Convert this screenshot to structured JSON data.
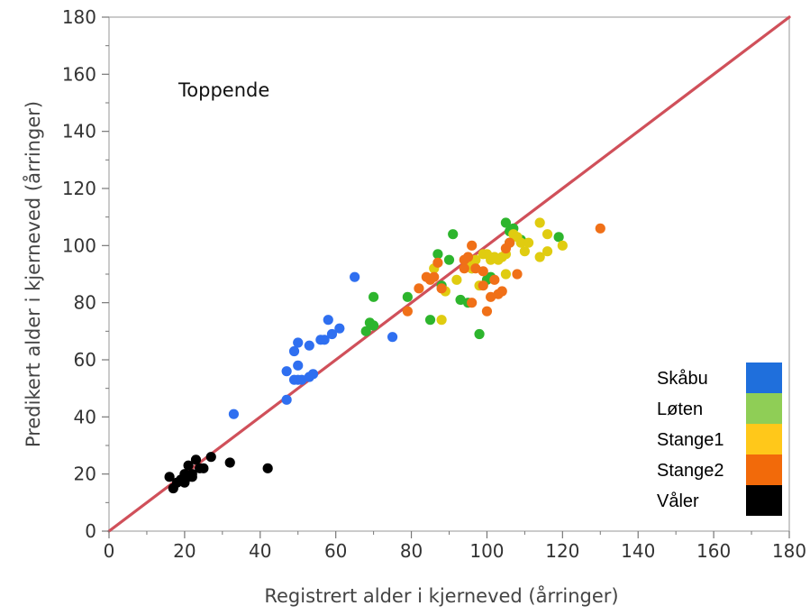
{
  "chart_data": {
    "type": "scatter",
    "title": "",
    "annotation": "Toppende",
    "xlabel": "Registrert alder i kjerneved (årringer)",
    "ylabel": "Predikert alder i kjerneved (årringer)",
    "xlim": [
      0,
      180
    ],
    "ylim": [
      0,
      180
    ],
    "xticks": [
      0,
      20,
      40,
      60,
      80,
      100,
      120,
      140,
      160,
      180
    ],
    "yticks": [
      0,
      20,
      40,
      60,
      80,
      100,
      120,
      140,
      160,
      180
    ],
    "grid": false,
    "legend_position": "bottom-right",
    "reference_line": {
      "from": [
        0,
        0
      ],
      "to": [
        180,
        180
      ],
      "color": "#d0505a"
    },
    "series": [
      {
        "name": "Skåbu",
        "color": "#1f6fdc",
        "marker_color": "#2f6ff0",
        "points": [
          [
            33,
            41
          ],
          [
            47,
            46
          ],
          [
            47,
            56
          ],
          [
            49,
            53
          ],
          [
            49,
            63
          ],
          [
            50,
            66
          ],
          [
            50,
            58
          ],
          [
            50,
            53
          ],
          [
            51,
            53
          ],
          [
            53,
            65
          ],
          [
            53,
            54
          ],
          [
            54,
            55
          ],
          [
            56,
            67
          ],
          [
            57,
            67
          ],
          [
            58,
            74
          ],
          [
            59,
            69
          ],
          [
            61,
            71
          ],
          [
            65,
            89
          ],
          [
            75,
            68
          ]
        ]
      },
      {
        "name": "Løten",
        "color": "#8fce56",
        "marker_color": "#2db52d",
        "points": [
          [
            68,
            70
          ],
          [
            69,
            73
          ],
          [
            70,
            82
          ],
          [
            70,
            72
          ],
          [
            79,
            82
          ],
          [
            85,
            74
          ],
          [
            87,
            97
          ],
          [
            88,
            86
          ],
          [
            90,
            95
          ],
          [
            91,
            104
          ],
          [
            93,
            81
          ],
          [
            95,
            80
          ],
          [
            96,
            92
          ],
          [
            98,
            69
          ],
          [
            100,
            88
          ],
          [
            101,
            89
          ],
          [
            105,
            108
          ],
          [
            106,
            105
          ],
          [
            106,
            101
          ],
          [
            107,
            106
          ],
          [
            109,
            102
          ],
          [
            119,
            103
          ]
        ]
      },
      {
        "name": "Stange1",
        "color": "#ffc81a",
        "marker_color": "#e0cc10",
        "points": [
          [
            86,
            92
          ],
          [
            88,
            74
          ],
          [
            89,
            84
          ],
          [
            92,
            88
          ],
          [
            95,
            94
          ],
          [
            96,
            92
          ],
          [
            97,
            95
          ],
          [
            98,
            86
          ],
          [
            99,
            97
          ],
          [
            100,
            97
          ],
          [
            101,
            95
          ],
          [
            102,
            96
          ],
          [
            103,
            95
          ],
          [
            104,
            96
          ],
          [
            105,
            97
          ],
          [
            105,
            90
          ],
          [
            107,
            104
          ],
          [
            108,
            103
          ],
          [
            109,
            101
          ],
          [
            110,
            98
          ],
          [
            111,
            101
          ],
          [
            114,
            108
          ],
          [
            114,
            96
          ],
          [
            116,
            104
          ],
          [
            116,
            98
          ],
          [
            120,
            100
          ]
        ]
      },
      {
        "name": "Stange2",
        "color": "#f26a0a",
        "marker_color": "#f07018",
        "points": [
          [
            79,
            77
          ],
          [
            82,
            85
          ],
          [
            84,
            89
          ],
          [
            85,
            88
          ],
          [
            86,
            89
          ],
          [
            87,
            94
          ],
          [
            88,
            85
          ],
          [
            94,
            92
          ],
          [
            94,
            95
          ],
          [
            95,
            96
          ],
          [
            96,
            100
          ],
          [
            96,
            80
          ],
          [
            97,
            92
          ],
          [
            99,
            91
          ],
          [
            99,
            86
          ],
          [
            100,
            77
          ],
          [
            101,
            82
          ],
          [
            102,
            88
          ],
          [
            103,
            83
          ],
          [
            104,
            84
          ],
          [
            105,
            99
          ],
          [
            106,
            101
          ],
          [
            108,
            90
          ],
          [
            130,
            106
          ]
        ]
      },
      {
        "name": "Våler",
        "color": "#000000",
        "marker_color": "#000000",
        "points": [
          [
            16,
            19
          ],
          [
            17,
            15
          ],
          [
            18,
            17
          ],
          [
            19,
            18
          ],
          [
            20,
            17
          ],
          [
            20,
            20
          ],
          [
            21,
            23
          ],
          [
            21,
            19
          ],
          [
            22,
            20
          ],
          [
            22,
            19
          ],
          [
            23,
            25
          ],
          [
            24,
            22
          ],
          [
            25,
            22
          ],
          [
            27,
            26
          ],
          [
            32,
            24
          ],
          [
            42,
            22
          ]
        ]
      }
    ]
  }
}
